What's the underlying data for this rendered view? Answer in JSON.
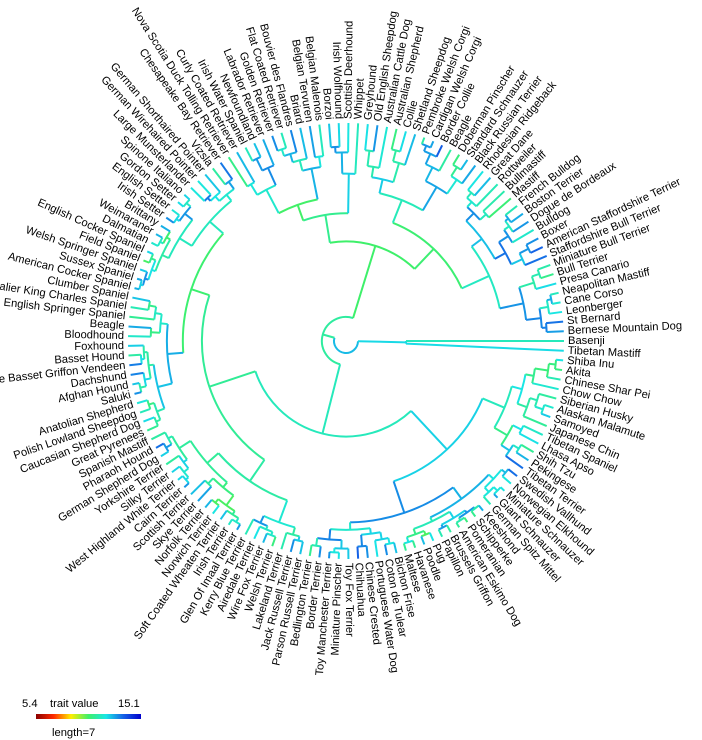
{
  "tips": [
    "Basenji",
    "Tibetan Mastiff",
    "Shiba Inu",
    "Akita",
    "Chinese Shar Pei",
    "Chow Chow",
    "Siberian Husky",
    "Alaskan Malamute",
    "Samoyed",
    "Japanese Chin",
    "Tibetan Spaniel",
    "Lhasa Apso",
    "Shih Tzu",
    "Pekingese",
    "Tibetan Terrier",
    "Swedish Vallhund",
    "Norwegian Elkhound",
    "Miniature Schnauzer",
    "Giant Schnauzer",
    "German Spitz Mittel",
    "Keeshond",
    "Schipperke",
    "Pomeranian",
    "American Eskimo Dog",
    "Brussels Griffon",
    "Papillon",
    "Pug",
    "Poodle",
    "Havanese",
    "Maltese",
    "Bichon Frise",
    "Coton de Tulear",
    "Portuguese Water Dog",
    "Chinese Crested",
    "Chihuahua",
    "Toy Fox Terrier",
    "Miniature Pinscher",
    "Toy Manchester Terrier",
    "Border Terrier",
    "Bedlington Terrier",
    "Parson Russell Terrier",
    "Jack Russell Terrier",
    "Lakeland Terrier",
    "Welsh Terrier",
    "Wire Fox Terrier",
    "Airedale Terrier",
    "Kerry Blue Terrier",
    "Glen Of Imaal Terrier",
    "Irish Terrier",
    "Soft Coated Wheaten Terrier",
    "Norwich Terrier",
    "Norfolk Terrier",
    "Skye Terrier",
    "Scottish Terrier",
    "Cairn Terrier",
    "West Highland White Terrier",
    "Silky Terrier",
    "Yorkshire Terrier",
    "German Shepherd Dog",
    "Pharaoh Hound",
    "Spanish Mastiff",
    "Great Pyrenees",
    "Caucasian Shepherd Dog",
    "Polish Lowland Sheepdog",
    "Anatolian Shepherd",
    "Saluki",
    "Afghan Hound",
    "Dachshund",
    "Petite Basset Griffon Vendeen",
    "Basset Hound",
    "Foxhound",
    "Bloodhound",
    "Beagle",
    "English Springer Spaniel",
    "Cavalier King Charles Spaniel",
    "Clumber Spaniel",
    "American Cocker Spaniel",
    "Sussex Spaniel",
    "Welsh Springer Spaniel",
    "Field Spaniel",
    "English Cocker Spaniel",
    "Dalmatian",
    "Weimaraner",
    "Brittany",
    "Irish Setter",
    "English Setter",
    "Gordon Setter",
    "Spinone Italiano",
    "Large Munsterlander",
    "German Wirehaired Pointer",
    "German Shorthaired Pointer",
    "Vizsla",
    "Chesapeake Bay Retriever",
    "Nova Scotia Duck Tolling Retriever",
    "Curly Coated Retriever",
    "Irish Water Spaniel",
    "Newfoundland",
    "Labrador Retriever",
    "Golden Retriever",
    "Flat Coated Retriever",
    "Bouvier des Flandres",
    "Briard",
    "Belgian Tervuren",
    "Belgian Malenois",
    "Borzoi",
    "Irish Wolfhound",
    "Scottish Deerhound",
    "Whippet",
    "Greyhound",
    "Old English Sheepdog",
    "Australian Cattle Dog",
    "Australian Shepherd",
    "Collie",
    "Shetland Sheepdog",
    "Pembroke Welsh Corgi",
    "Cardigan Welsh Corgi",
    "Border Collie",
    "Beagle",
    "Doberman Pinscher",
    "Standard Schnauzer",
    "Black Russian Terrier",
    "Rhodesian Ridgeback",
    "Great Dane",
    "Rottweiler",
    "Bullmastiff",
    "Mastiff",
    "French Bulldog",
    "Boston Terrier",
    "Dogue de Bordeaux",
    "Bulldog",
    "Boxer",
    "American Staffordshire Terrier",
    "Staffordshire Bull Terrier",
    "Miniature Bull Terrier",
    "Bull Terrier",
    "Presa Canario",
    "Neapolitan Mastiff",
    "Cane Corso",
    "Leonberger",
    "St Bernard",
    "Bernese Mountain Dog"
  ],
  "legend": {
    "min_label": "5.4",
    "title": "trait value",
    "max_label": "15.1",
    "length_label": "length=7",
    "min_value": 5.4,
    "max_value": 15.1
  },
  "colors": {
    "ramp": [
      "#8b0000",
      "#ff2a00",
      "#ffee00",
      "#3ef06a",
      "#19e6e6",
      "#1560e6",
      "#0000cc"
    ]
  }
}
